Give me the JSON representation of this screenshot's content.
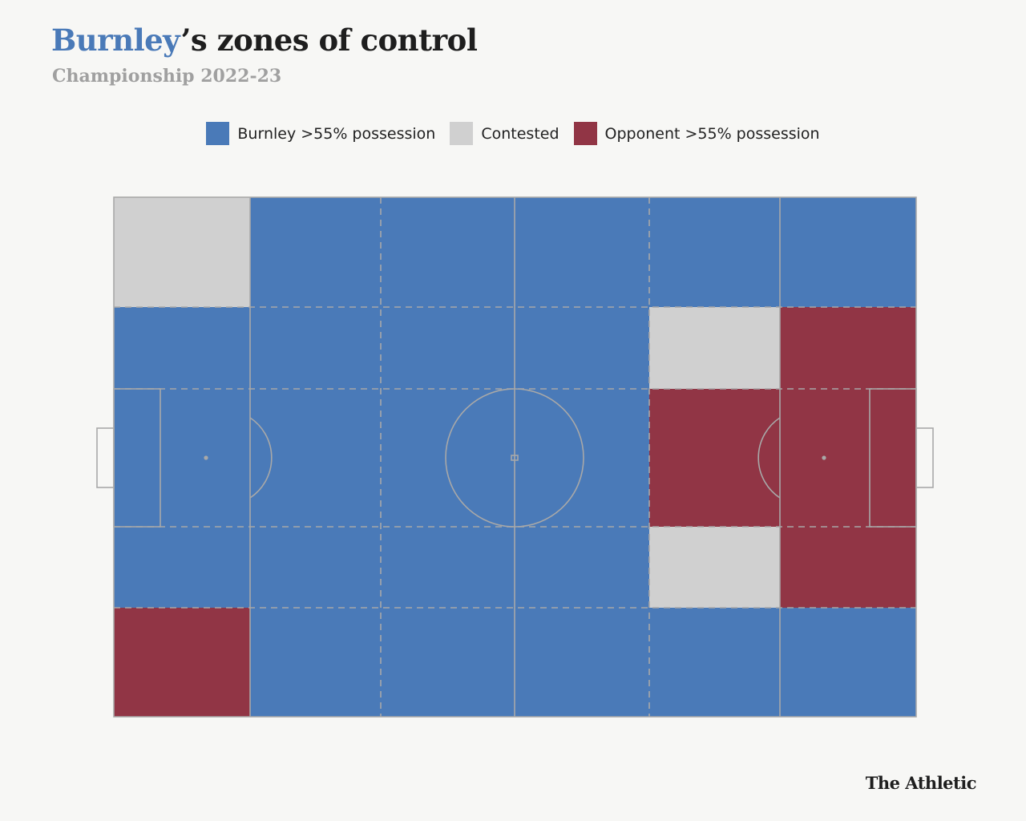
{
  "title": {
    "team": "Burnley",
    "rest": "’s zones of control"
  },
  "subtitle": "Championship 2022-23",
  "brand": "The Athletic",
  "colors": {
    "burnley": "#4a7ab8",
    "contested": "#d0d0d0",
    "opponent": "#913545"
  },
  "legend": [
    {
      "key": "burnley",
      "label": "Burnley >55% possession"
    },
    {
      "key": "contested",
      "label": "Contested"
    },
    {
      "key": "opponent",
      "label": "Opponent >55% possession"
    }
  ],
  "chart_data": {
    "type": "heatmap",
    "columns": 6,
    "rows": 5,
    "grid": [
      [
        "contested",
        "burnley",
        "burnley",
        "burnley",
        "burnley",
        "burnley"
      ],
      [
        "burnley",
        "burnley",
        "burnley",
        "burnley",
        "contested",
        "opponent"
      ],
      [
        "burnley",
        "burnley",
        "burnley",
        "burnley",
        "opponent",
        "opponent"
      ],
      [
        "burnley",
        "burnley",
        "burnley",
        "burnley",
        "contested",
        "opponent"
      ],
      [
        "opponent",
        "burnley",
        "burnley",
        "burnley",
        "burnley",
        "burnley"
      ]
    ]
  }
}
